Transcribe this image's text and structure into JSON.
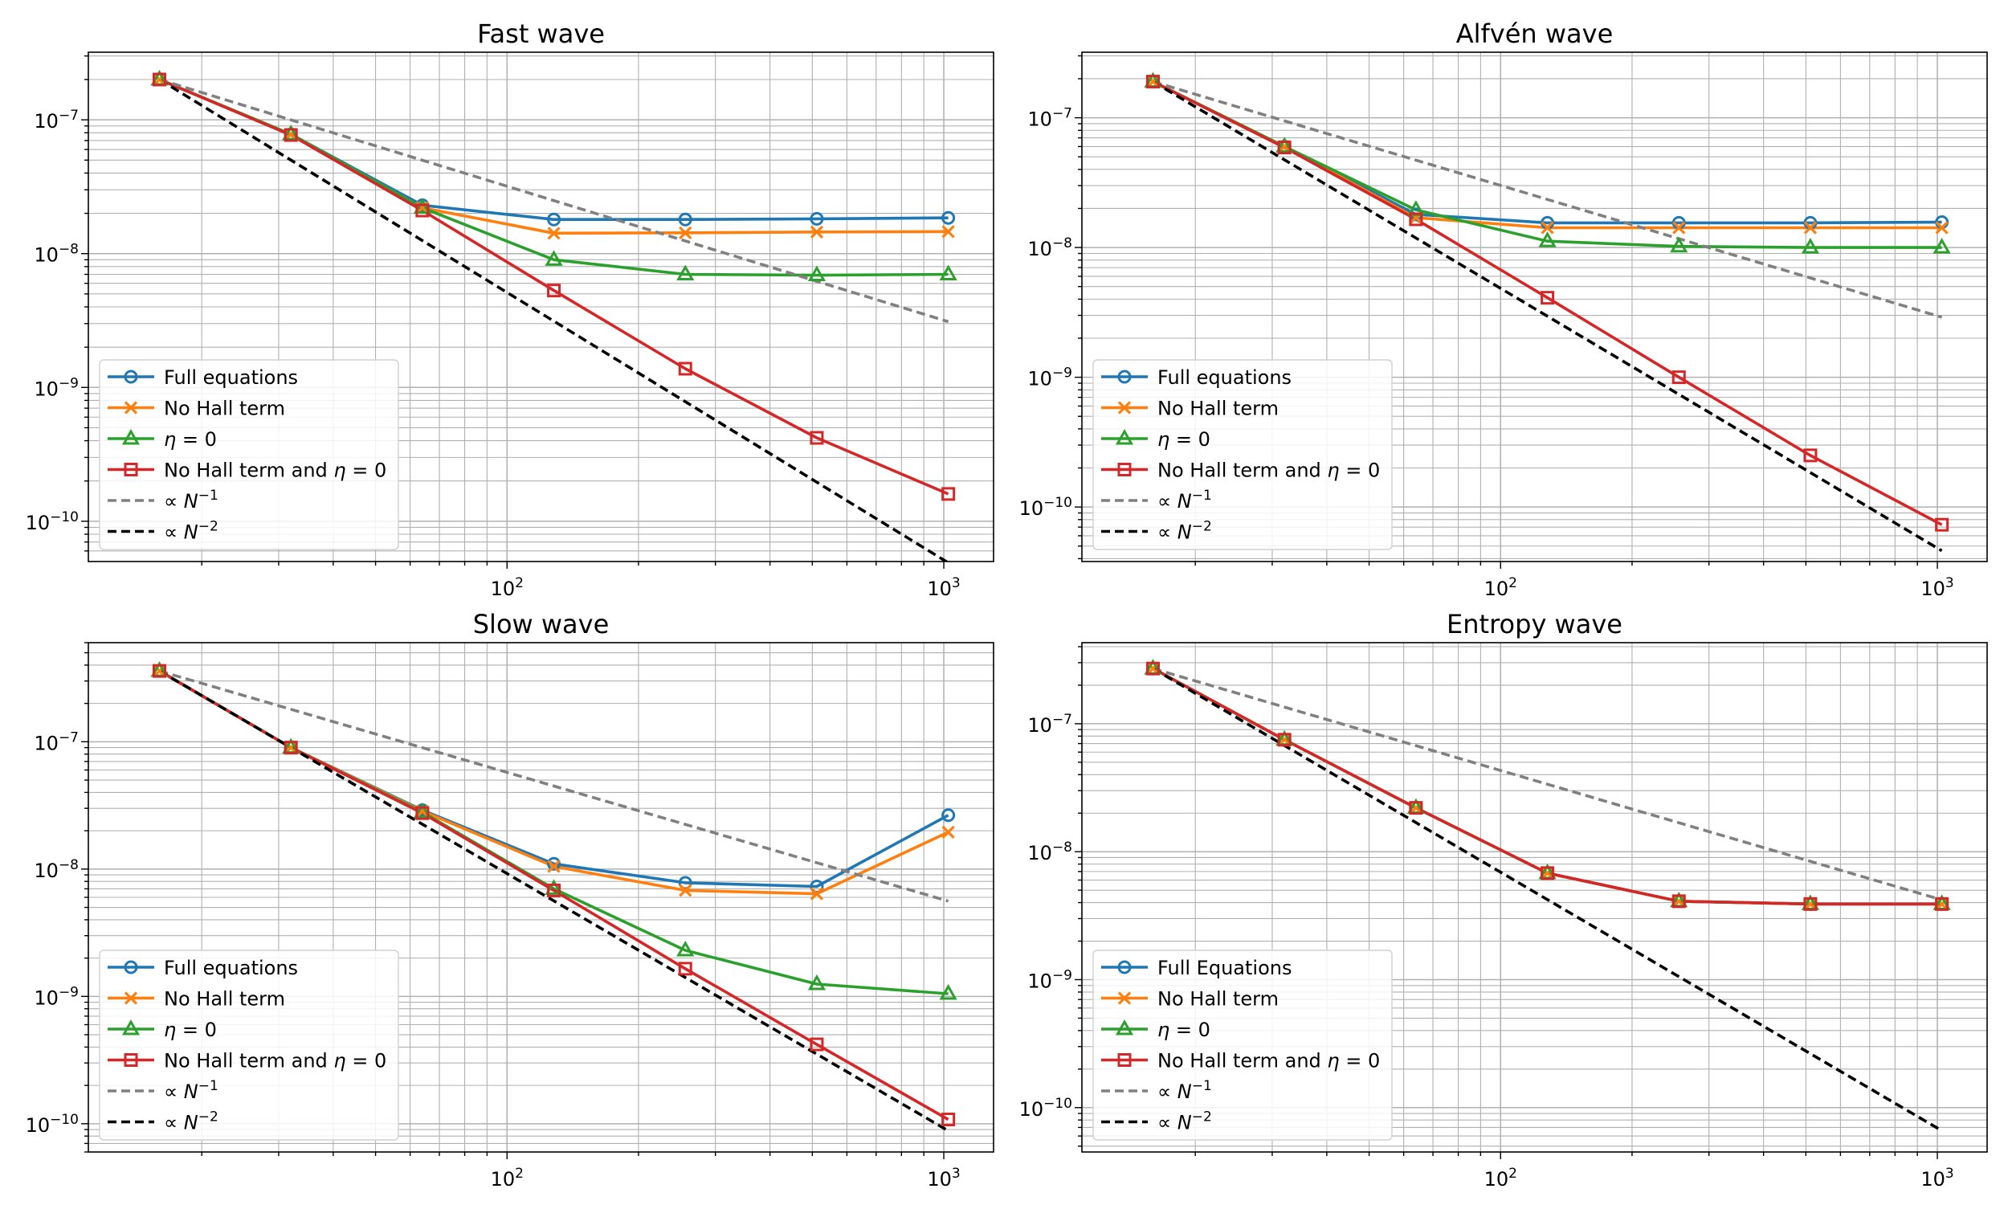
{
  "chart_data": [
    {
      "type": "line",
      "title": "Fast wave",
      "xscale": "log",
      "yscale": "log",
      "xlim": [
        11,
        1300
      ],
      "ylim": [
        5e-11,
        3.2e-07
      ],
      "grid": true,
      "legend_loc": "lower-left",
      "x_ticks": [
        {
          "base": "10",
          "exp": "2",
          "value": 100
        },
        {
          "base": "10",
          "exp": "3",
          "value": 1000
        }
      ],
      "y_ticks": [
        {
          "base": "10",
          "exp": "−10",
          "value": 1e-10
        },
        {
          "base": "10",
          "exp": "−9",
          "value": 1e-09
        },
        {
          "base": "10",
          "exp": "−8",
          "value": 1e-08
        },
        {
          "base": "10",
          "exp": "−7",
          "value": 1e-07
        }
      ],
      "series": [
        {
          "name": "Full equations",
          "label_parts": [
            {
              "t": "Full equations"
            }
          ],
          "style": "line",
          "color": "#1f77b4",
          "marker": "circle",
          "x": [
            16,
            32,
            64,
            128,
            256,
            512,
            1024
          ],
          "y": [
            2e-07,
            7.8e-08,
            2.3e-08,
            1.8e-08,
            1.8e-08,
            1.82e-08,
            1.85e-08
          ]
        },
        {
          "name": "No Hall term",
          "label_parts": [
            {
              "t": "No Hall term"
            }
          ],
          "style": "line",
          "color": "#ff7f0e",
          "marker": "x",
          "x": [
            16,
            32,
            64,
            128,
            256,
            512,
            1024
          ],
          "y": [
            2e-07,
            7.8e-08,
            2.2e-08,
            1.42e-08,
            1.43e-08,
            1.45e-08,
            1.46e-08
          ]
        },
        {
          "name": "η = 0",
          "label_parts": [
            {
              "t": "η",
              "i": true
            },
            {
              "t": " = 0"
            }
          ],
          "style": "line",
          "color": "#2ca02c",
          "marker": "triangle",
          "x": [
            16,
            32,
            64,
            128,
            256,
            512,
            1024
          ],
          "y": [
            2e-07,
            7.8e-08,
            2.2e-08,
            9e-09,
            7e-09,
            6.9e-09,
            7e-09
          ]
        },
        {
          "name": "No Hall term and η = 0",
          "label_parts": [
            {
              "t": "No Hall term and "
            },
            {
              "t": "η",
              "i": true
            },
            {
              "t": " = 0"
            }
          ],
          "style": "line",
          "color": "#d62728",
          "marker": "square",
          "x": [
            16,
            32,
            64,
            128,
            256,
            512,
            1024
          ],
          "y": [
            2e-07,
            7.7e-08,
            2.1e-08,
            5.3e-09,
            1.38e-09,
            4.2e-10,
            1.6e-10
          ]
        },
        {
          "name": "∝ N⁻¹",
          "label_parts": [
            {
              "t": "∝ "
            },
            {
              "t": "N",
              "i": true
            },
            {
              "t": "−1",
              "sup": true
            }
          ],
          "style": "dashed",
          "color": "#808080",
          "marker": "none",
          "x": [
            16,
            1024
          ],
          "y": [
            2e-07,
            3.1e-09
          ]
        },
        {
          "name": "∝ N⁻²",
          "label_parts": [
            {
              "t": "∝ "
            },
            {
              "t": "N",
              "i": true
            },
            {
              "t": "−2",
              "sup": true
            }
          ],
          "style": "dashed",
          "color": "#000000",
          "marker": "none",
          "x": [
            16,
            1024
          ],
          "y": [
            2e-07,
            4.9e-11
          ]
        }
      ]
    },
    {
      "type": "line",
      "title": "Alfvén wave",
      "xscale": "log",
      "yscale": "log",
      "xlim": [
        11,
        1300
      ],
      "ylim": [
        3.8e-11,
        3.2e-07
      ],
      "grid": true,
      "legend_loc": "lower-left",
      "x_ticks": [
        {
          "base": "10",
          "exp": "2",
          "value": 100
        },
        {
          "base": "10",
          "exp": "3",
          "value": 1000
        }
      ],
      "y_ticks": [
        {
          "base": "10",
          "exp": "−10",
          "value": 1e-10
        },
        {
          "base": "10",
          "exp": "−9",
          "value": 1e-09
        },
        {
          "base": "10",
          "exp": "−8",
          "value": 1e-08
        },
        {
          "base": "10",
          "exp": "−7",
          "value": 1e-07
        }
      ],
      "series": [
        {
          "name": "Full equations",
          "label_parts": [
            {
              "t": "Full equations"
            }
          ],
          "style": "line",
          "color": "#1f77b4",
          "marker": "circle",
          "x": [
            16,
            32,
            64,
            128,
            256,
            512,
            1024
          ],
          "y": [
            1.9e-07,
            6e-08,
            1.8e-08,
            1.55e-08,
            1.55e-08,
            1.55e-08,
            1.57e-08
          ]
        },
        {
          "name": "No Hall term",
          "label_parts": [
            {
              "t": "No Hall term"
            }
          ],
          "style": "line",
          "color": "#ff7f0e",
          "marker": "x",
          "x": [
            16,
            32,
            64,
            128,
            256,
            512,
            1024
          ],
          "y": [
            1.9e-07,
            6e-08,
            1.7e-08,
            1.42e-08,
            1.42e-08,
            1.42e-08,
            1.42e-08
          ]
        },
        {
          "name": "η = 0",
          "label_parts": [
            {
              "t": "η",
              "i": true
            },
            {
              "t": " = 0"
            }
          ],
          "style": "line",
          "color": "#2ca02c",
          "marker": "triangle",
          "x": [
            16,
            32,
            64,
            128,
            256,
            512,
            1024
          ],
          "y": [
            1.9e-07,
            6e-08,
            1.95e-08,
            1.12e-08,
            1.02e-08,
            1e-08,
            1e-08
          ]
        },
        {
          "name": "No Hall term and η = 0",
          "label_parts": [
            {
              "t": "No Hall term and "
            },
            {
              "t": "η",
              "i": true
            },
            {
              "t": " = 0"
            }
          ],
          "style": "line",
          "color": "#d62728",
          "marker": "square",
          "x": [
            16,
            32,
            64,
            128,
            256,
            512,
            1024
          ],
          "y": [
            1.9e-07,
            5.9e-08,
            1.65e-08,
            4.1e-09,
            1e-09,
            2.5e-10,
            7.3e-11
          ]
        },
        {
          "name": "∝ N⁻¹",
          "label_parts": [
            {
              "t": "∝ "
            },
            {
              "t": "N",
              "i": true
            },
            {
              "t": "−1",
              "sup": true
            }
          ],
          "style": "dashed",
          "color": "#808080",
          "marker": "none",
          "x": [
            16,
            1024
          ],
          "y": [
            1.9e-07,
            2.9e-09
          ]
        },
        {
          "name": "∝ N⁻²",
          "label_parts": [
            {
              "t": "∝ "
            },
            {
              "t": "N",
              "i": true
            },
            {
              "t": "−2",
              "sup": true
            }
          ],
          "style": "dashed",
          "color": "#000000",
          "marker": "none",
          "x": [
            16,
            1024
          ],
          "y": [
            1.9e-07,
            4.6e-11
          ]
        }
      ]
    },
    {
      "type": "line",
      "title": "Slow wave",
      "xscale": "log",
      "yscale": "log",
      "xlim": [
        11,
        1300
      ],
      "ylim": [
        6e-11,
        6e-07
      ],
      "grid": true,
      "legend_loc": "lower-left",
      "x_ticks": [
        {
          "base": "10",
          "exp": "2",
          "value": 100
        },
        {
          "base": "10",
          "exp": "3",
          "value": 1000
        }
      ],
      "y_ticks": [
        {
          "base": "10",
          "exp": "−10",
          "value": 1e-10
        },
        {
          "base": "10",
          "exp": "−9",
          "value": 1e-09
        },
        {
          "base": "10",
          "exp": "−8",
          "value": 1e-08
        },
        {
          "base": "10",
          "exp": "−7",
          "value": 1e-07
        }
      ],
      "series": [
        {
          "name": "Full equations",
          "label_parts": [
            {
              "t": "Full equations"
            }
          ],
          "style": "line",
          "color": "#1f77b4",
          "marker": "circle",
          "x": [
            16,
            32,
            64,
            128,
            256,
            512,
            1024
          ],
          "y": [
            3.6e-07,
            9e-08,
            2.9e-08,
            1.1e-08,
            7.8e-09,
            7.3e-09,
            2.65e-08
          ]
        },
        {
          "name": "No Hall term",
          "label_parts": [
            {
              "t": "No Hall term"
            }
          ],
          "style": "line",
          "color": "#ff7f0e",
          "marker": "x",
          "x": [
            16,
            32,
            64,
            128,
            256,
            512,
            1024
          ],
          "y": [
            3.6e-07,
            9e-08,
            2.85e-08,
            1.05e-08,
            6.8e-09,
            6.4e-09,
            1.95e-08
          ]
        },
        {
          "name": "η = 0",
          "label_parts": [
            {
              "t": "η",
              "i": true
            },
            {
              "t": " = 0"
            }
          ],
          "style": "line",
          "color": "#2ca02c",
          "marker": "triangle",
          "x": [
            16,
            32,
            64,
            128,
            256,
            512,
            1024
          ],
          "y": [
            3.6e-07,
            9e-08,
            2.8e-08,
            7e-09,
            2.3e-09,
            1.25e-09,
            1.05e-09
          ]
        },
        {
          "name": "No Hall term and η = 0",
          "label_parts": [
            {
              "t": "No Hall term and "
            },
            {
              "t": "η",
              "i": true
            },
            {
              "t": " = 0"
            }
          ],
          "style": "line",
          "color": "#d62728",
          "marker": "square",
          "x": [
            16,
            32,
            64,
            128,
            256,
            512,
            1024
          ],
          "y": [
            3.6e-07,
            9e-08,
            2.75e-08,
            6.8e-09,
            1.65e-09,
            4.2e-10,
            1.08e-10
          ]
        },
        {
          "name": "∝ N⁻¹",
          "label_parts": [
            {
              "t": "∝ "
            },
            {
              "t": "N",
              "i": true
            },
            {
              "t": "−1",
              "sup": true
            }
          ],
          "style": "dashed",
          "color": "#808080",
          "marker": "none",
          "x": [
            16,
            1024
          ],
          "y": [
            3.6e-07,
            5.6e-09
          ]
        },
        {
          "name": "∝ N⁻²",
          "label_parts": [
            {
              "t": "∝ "
            },
            {
              "t": "N",
              "i": true
            },
            {
              "t": "−2",
              "sup": true
            }
          ],
          "style": "dashed",
          "color": "#000000",
          "marker": "none",
          "x": [
            16,
            1024
          ],
          "y": [
            3.6e-07,
            8.8e-11
          ]
        }
      ]
    },
    {
      "type": "line",
      "title": "Entropy wave",
      "xscale": "log",
      "yscale": "log",
      "xlim": [
        11,
        1300
      ],
      "ylim": [
        4.5e-11,
        4.3e-07
      ],
      "grid": true,
      "legend_loc": "lower-left",
      "x_ticks": [
        {
          "base": "10",
          "exp": "2",
          "value": 100
        },
        {
          "base": "10",
          "exp": "3",
          "value": 1000
        }
      ],
      "y_ticks": [
        {
          "base": "10",
          "exp": "−10",
          "value": 1e-10
        },
        {
          "base": "10",
          "exp": "−9",
          "value": 1e-09
        },
        {
          "base": "10",
          "exp": "−8",
          "value": 1e-08
        },
        {
          "base": "10",
          "exp": "−7",
          "value": 1e-07
        }
      ],
      "series": [
        {
          "name": "Full Equations",
          "label_parts": [
            {
              "t": "Full Equations"
            }
          ],
          "style": "line",
          "color": "#1f77b4",
          "marker": "circle",
          "x": [
            16,
            32,
            64,
            128,
            256,
            512,
            1024
          ],
          "y": [
            2.7e-07,
            7.5e-08,
            2.2e-08,
            6.8e-09,
            4.1e-09,
            3.9e-09,
            3.9e-09
          ]
        },
        {
          "name": "No Hall term",
          "label_parts": [
            {
              "t": "No Hall term"
            }
          ],
          "style": "line",
          "color": "#ff7f0e",
          "marker": "x",
          "x": [
            16,
            32,
            64,
            128,
            256,
            512,
            1024
          ],
          "y": [
            2.7e-07,
            7.5e-08,
            2.2e-08,
            6.8e-09,
            4.1e-09,
            3.9e-09,
            3.9e-09
          ]
        },
        {
          "name": "η = 0",
          "label_parts": [
            {
              "t": "η",
              "i": true
            },
            {
              "t": " = 0"
            }
          ],
          "style": "line",
          "color": "#2ca02c",
          "marker": "triangle",
          "x": [
            16,
            32,
            64,
            128,
            256,
            512,
            1024
          ],
          "y": [
            2.7e-07,
            7.5e-08,
            2.2e-08,
            6.8e-09,
            4.1e-09,
            3.9e-09,
            3.9e-09
          ]
        },
        {
          "name": "No Hall term and η = 0",
          "label_parts": [
            {
              "t": "No Hall term and "
            },
            {
              "t": "η",
              "i": true
            },
            {
              "t": " = 0"
            }
          ],
          "style": "line",
          "color": "#d62728",
          "marker": "square",
          "x": [
            16,
            32,
            64,
            128,
            256,
            512,
            1024
          ],
          "y": [
            2.7e-07,
            7.5e-08,
            2.2e-08,
            6.8e-09,
            4.1e-09,
            3.9e-09,
            3.9e-09
          ]
        },
        {
          "name": "∝ N⁻¹",
          "label_parts": [
            {
              "t": "∝ "
            },
            {
              "t": "N",
              "i": true
            },
            {
              "t": "−1",
              "sup": true
            }
          ],
          "style": "dashed",
          "color": "#808080",
          "marker": "none",
          "x": [
            16,
            1024
          ],
          "y": [
            2.7e-07,
            4.2e-09
          ]
        },
        {
          "name": "∝ N⁻²",
          "label_parts": [
            {
              "t": "∝ "
            },
            {
              "t": "N",
              "i": true
            },
            {
              "t": "−2",
              "sup": true
            }
          ],
          "style": "dashed",
          "color": "#000000",
          "marker": "none",
          "x": [
            16,
            1024
          ],
          "y": [
            2.7e-07,
            6.6e-11
          ]
        }
      ]
    }
  ]
}
